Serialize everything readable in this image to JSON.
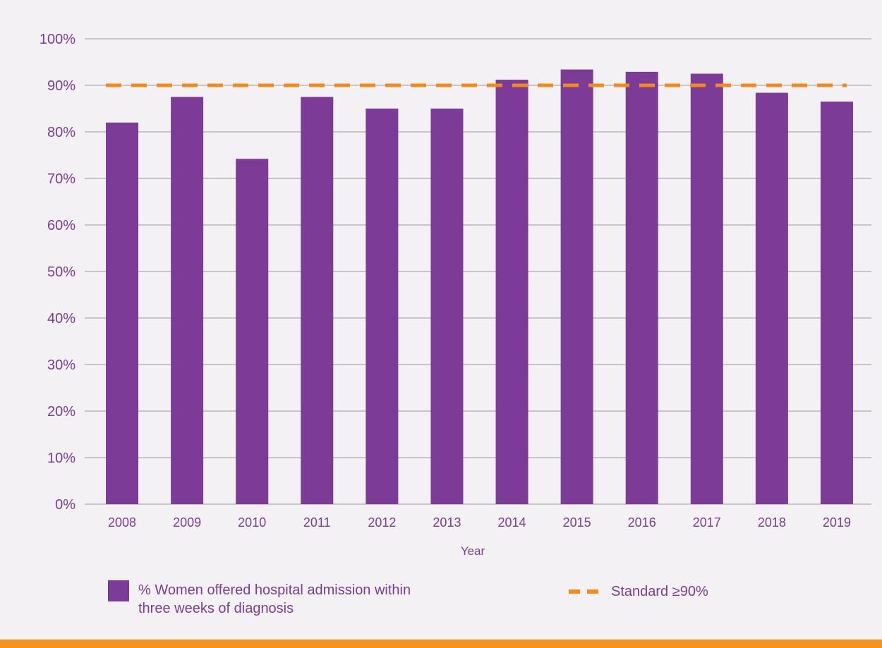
{
  "colors": {
    "bar": "#7b3b96",
    "standard": "#f28a1e",
    "grid": "#9a9a9a",
    "text": "#7a3d96",
    "band": "#f6921e"
  },
  "chart_data": {
    "type": "bar",
    "categories": [
      "2008",
      "2009",
      "2010",
      "2011",
      "2012",
      "2013",
      "2014",
      "2015",
      "2016",
      "2017",
      "2018",
      "2019"
    ],
    "series": [
      {
        "name": "% Women offered hospital admission within three weeks of diagnosis",
        "values": [
          82,
          87.5,
          74.2,
          87.5,
          85,
          85,
          91.2,
          93.4,
          92.9,
          92.5,
          88.4,
          86.5
        ]
      }
    ],
    "reference_line": {
      "name": "Standard ≥90%",
      "value": 90,
      "style": "dashed"
    },
    "xlabel": "Year",
    "ylabel": "",
    "ylim": [
      0,
      100
    ],
    "yticks": [
      "0%",
      "10%",
      "20%",
      "30%",
      "40%",
      "50%",
      "60%",
      "70%",
      "80%",
      "90%",
      "100%"
    ],
    "grid": true,
    "legend_position": "bottom"
  },
  "legend": {
    "bar_label_line1": "% Women offered hospital admission within",
    "bar_label_line2": "three weeks of diagnosis",
    "standard_label": "Standard ≥90%"
  }
}
